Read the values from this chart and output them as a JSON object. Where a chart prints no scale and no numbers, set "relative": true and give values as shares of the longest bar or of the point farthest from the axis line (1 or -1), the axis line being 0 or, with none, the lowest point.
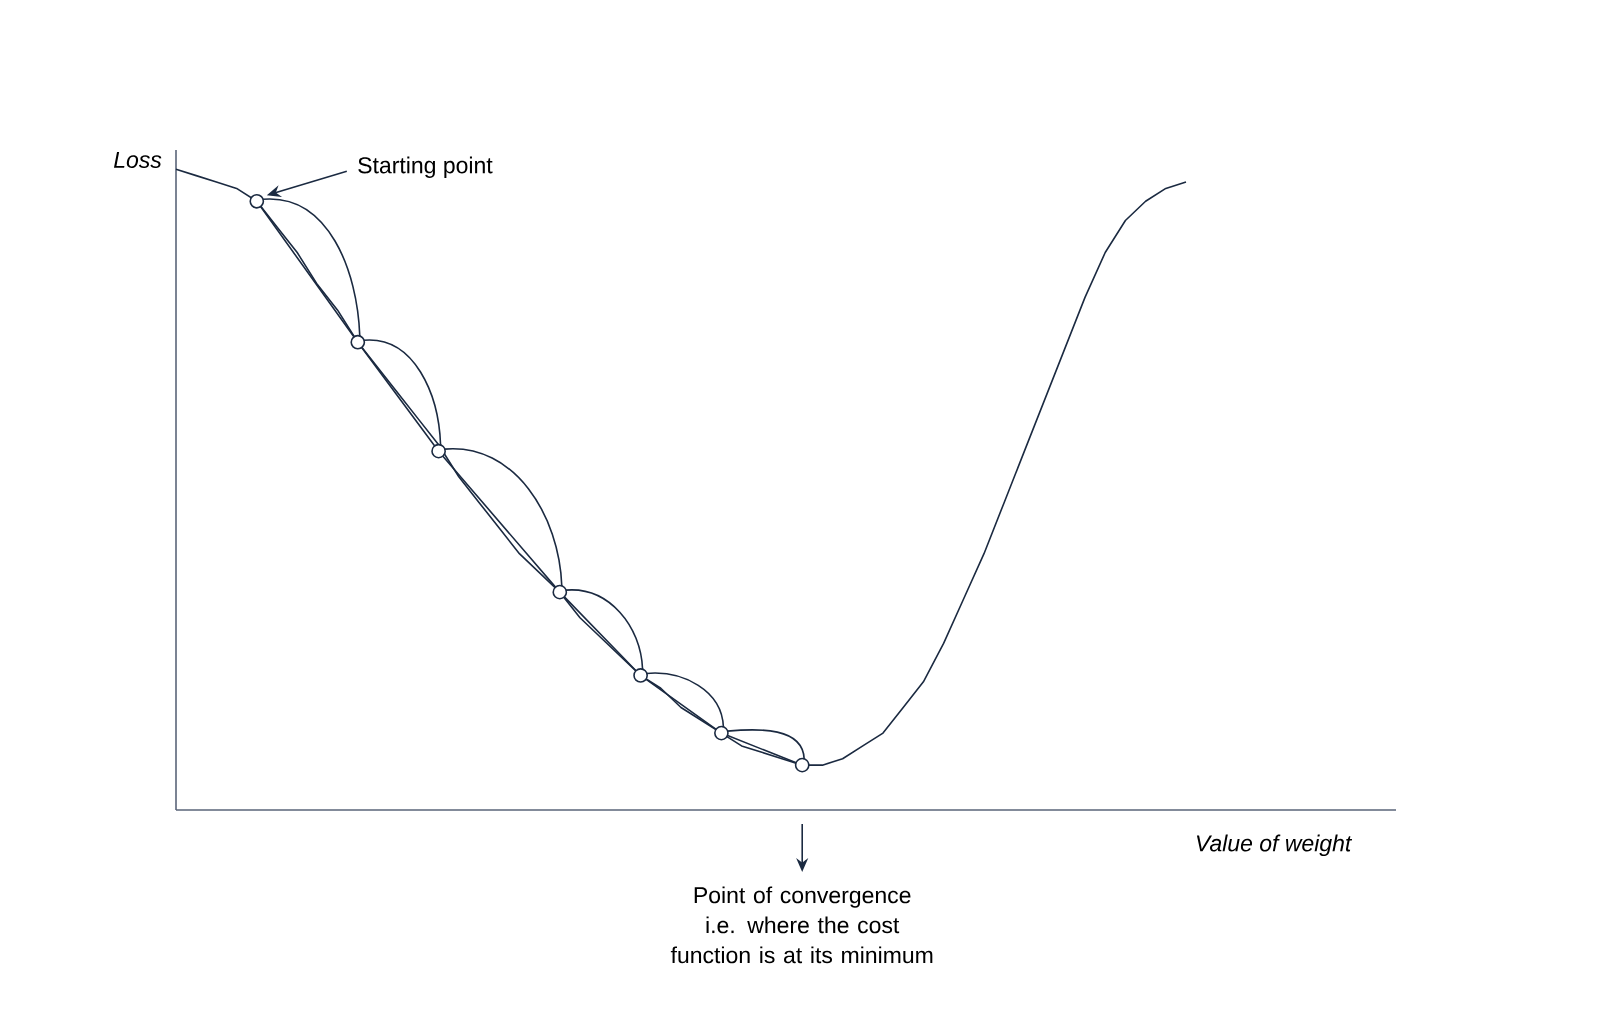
{
  "chart_data": {
    "type": "line",
    "xlabel": "Value of weight",
    "ylabel": "Loss",
    "relative": true,
    "categories": [
      null,
      null,
      null,
      null,
      null,
      null,
      null,
      null,
      null,
      null,
      null,
      null,
      null,
      null,
      null,
      null,
      null,
      null,
      null,
      null,
      null,
      null,
      null,
      null,
      null,
      null,
      null,
      null,
      null,
      null,
      null,
      null,
      null,
      null,
      null,
      null,
      null,
      null,
      null,
      null,
      null,
      null,
      null,
      null,
      null,
      null,
      null,
      null,
      null,
      null,
      null
    ],
    "series": [
      {
        "color": "#1b2a41",
        "marker": "none",
        "line_style": "solid",
        "values": [
          1.0,
          0.99,
          0.98,
          0.97,
          0.95,
          0.91,
          0.87,
          0.82,
          0.78,
          0.73,
          0.69,
          0.65,
          0.61,
          0.57,
          0.52,
          0.48,
          0.44,
          0.4,
          0.37,
          0.34,
          0.3,
          0.27,
          0.24,
          0.21,
          0.19,
          0.16,
          0.14,
          0.12,
          0.1,
          0.09,
          0.08,
          0.07,
          0.07,
          0.08,
          0.1,
          0.12,
          0.16,
          0.2,
          0.26,
          0.33,
          0.4,
          0.48,
          0.56,
          0.64,
          0.72,
          0.8,
          0.87,
          0.92,
          0.95,
          0.97,
          0.98
        ]
      },
      {
        "color": "#1b2a41",
        "marker": "circle",
        "line_style": "solid",
        "values": [
          null,
          null,
          null,
          null,
          0.95,
          null,
          null,
          null,
          null,
          0.73,
          null,
          null,
          null,
          0.56,
          null,
          null,
          null,
          null,
          null,
          0.34,
          null,
          null,
          null,
          0.21,
          null,
          null,
          null,
          0.12,
          null,
          null,
          null,
          0.07,
          null,
          null,
          null,
          null,
          null,
          null,
          null,
          null,
          null,
          null,
          null,
          null,
          null,
          null,
          null,
          null,
          null,
          null,
          null
        ]
      }
    ],
    "annotations": [
      "Starting point",
      "Point of convergence i.e. where the cost function is at its minimum"
    ]
  }
}
